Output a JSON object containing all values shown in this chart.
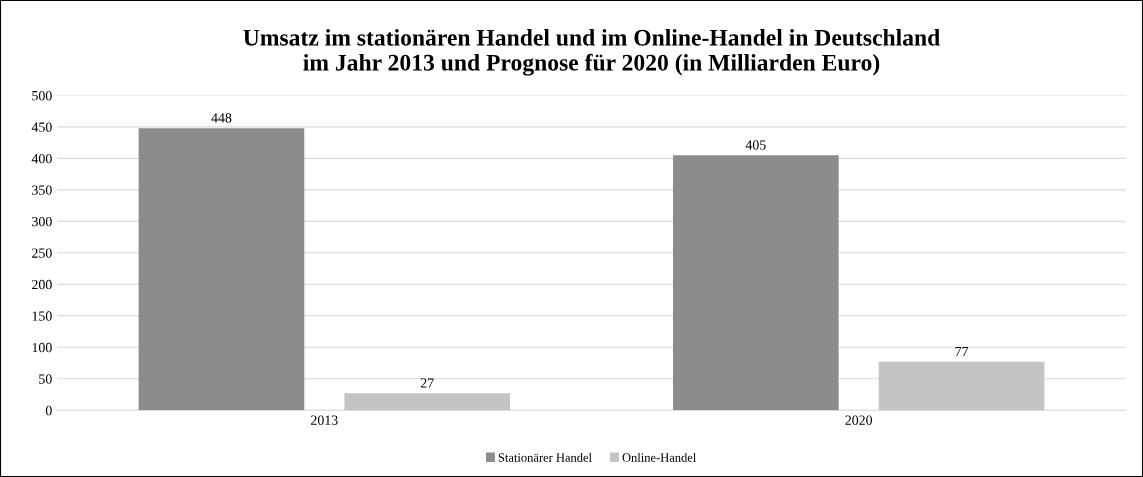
{
  "chart_data": {
    "type": "bar",
    "title": "Umsatz im stationären Handel und im Online-Handel in Deutschland\nim Jahr 2013 und Prognose für 2020 (in Milliarden Euro)",
    "categories": [
      "2013",
      "2020"
    ],
    "series": [
      {
        "name": "Stationärer Handel",
        "color": "#8c8c8c",
        "values": [
          448,
          405
        ]
      },
      {
        "name": "Online-Handel",
        "color": "#c4c4c4",
        "values": [
          27,
          77
        ]
      }
    ],
    "ylim": [
      0,
      500
    ],
    "yticks": [
      0,
      50,
      100,
      150,
      200,
      250,
      300,
      350,
      400,
      450,
      500
    ],
    "grid": "y",
    "legend": "bottom",
    "data_labels": true
  }
}
